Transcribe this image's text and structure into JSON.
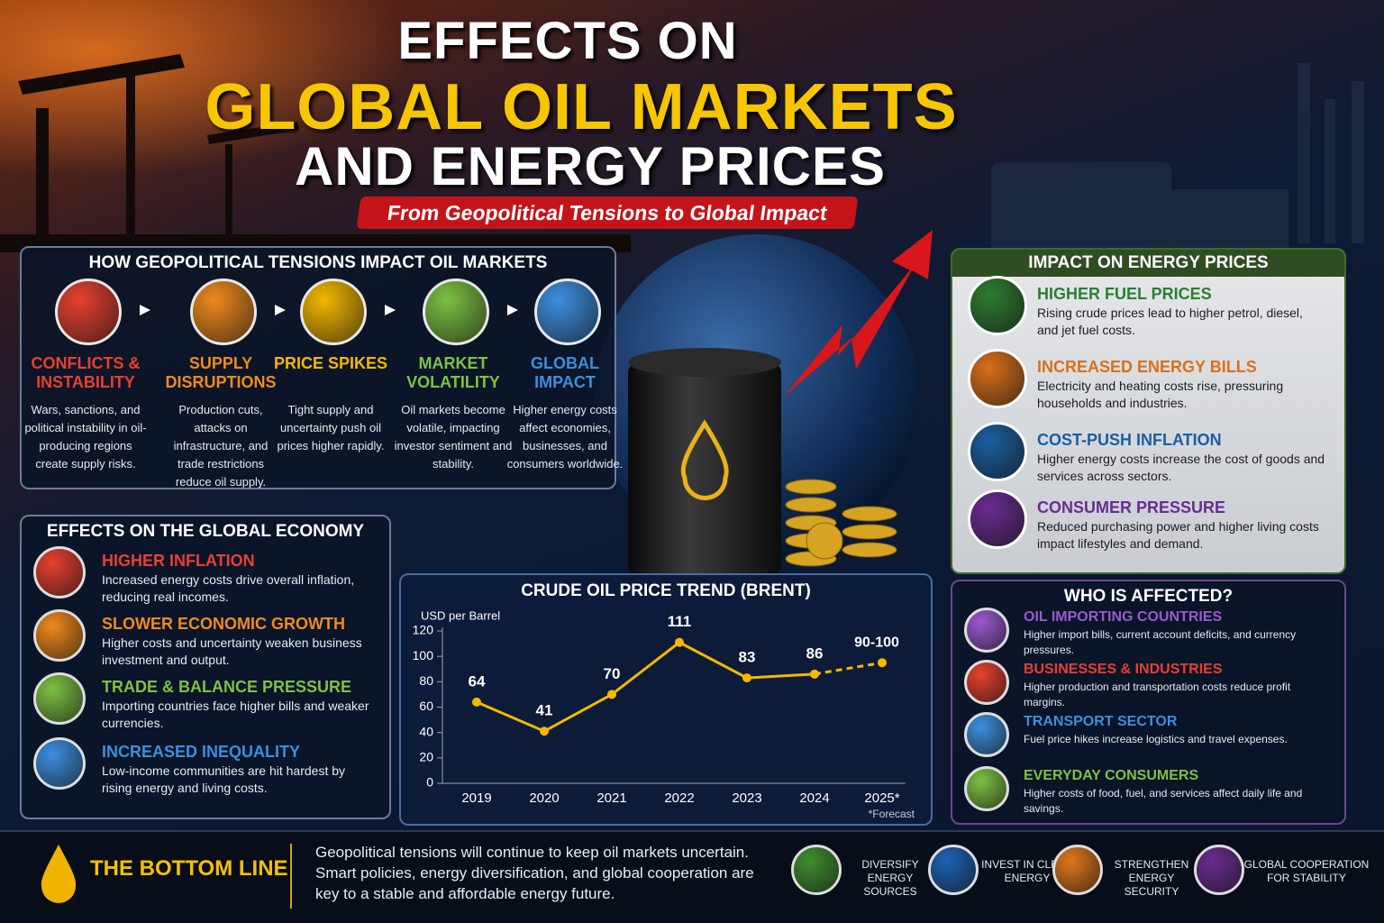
{
  "header": {
    "title_line1": "EFFECTS ON",
    "title_line2": "GLOBAL OIL MARKETS",
    "title_line3": "AND ENERGY PRICES",
    "subtitle": "From Geopolitical Tensions to Global Impact"
  },
  "tensions": {
    "title": "HOW GEOPOLITICAL TENSIONS IMPACT OIL MARKETS",
    "steps": [
      {
        "title": "CONFLICTS & INSTABILITY",
        "text": "Wars, sanctions, and political instability in oil-producing regions create supply risks.",
        "color": "#e8402f"
      },
      {
        "title": "SUPPLY DISRUPTIONS",
        "text": "Production cuts, attacks on infrastructure, and trade restrictions reduce oil supply.",
        "color": "#f08a1c"
      },
      {
        "title": "PRICE SPIKES",
        "text": "Tight supply and uncertainty push oil prices higher rapidly.",
        "color": "#f5b800"
      },
      {
        "title": "MARKET VOLATILITY",
        "text": "Oil markets become volatile, impacting investor sentiment and stability.",
        "color": "#7cc242"
      },
      {
        "title": "GLOBAL IMPACT",
        "text": "Higher energy costs affect economies, businesses, and consumers worldwide.",
        "color": "#3c8fe0"
      }
    ]
  },
  "economy": {
    "title": "EFFECTS ON THE GLOBAL ECONOMY",
    "items": [
      {
        "title": "HIGHER INFLATION",
        "text": "Increased energy costs drive overall inflation, reducing real incomes.",
        "color": "#e8402f"
      },
      {
        "title": "SLOWER ECONOMIC GROWTH",
        "text": "Higher costs and uncertainty weaken business investment and output.",
        "color": "#f08a1c"
      },
      {
        "title": "TRADE & BALANCE PRESSURE",
        "text": "Importing countries face higher bills and weaker currencies.",
        "color": "#7cc242"
      },
      {
        "title": "INCREASED INEQUALITY",
        "text": "Low-income communities are hit hardest by rising energy and living costs.",
        "color": "#3c8fe0"
      }
    ]
  },
  "energy_prices": {
    "title": "IMPACT ON ENERGY PRICES",
    "items": [
      {
        "title": "HIGHER FUEL PRICES",
        "text": "Rising crude prices lead to higher petrol, diesel, and jet fuel costs.",
        "color": "#2e7d32"
      },
      {
        "title": "INCREASED ENERGY BILLS",
        "text": "Electricity and heating costs rise, pressuring households and industries.",
        "color": "#d9701a"
      },
      {
        "title": "COST-PUSH INFLATION",
        "text": "Higher energy costs increase the cost of goods and services across sectors.",
        "color": "#1b5fa0"
      },
      {
        "title": "CONSUMER PRESSURE",
        "text": "Reduced purchasing power and higher living costs impact lifestyles and demand.",
        "color": "#6a2c91"
      }
    ]
  },
  "affected": {
    "title": "WHO IS AFFECTED?",
    "items": [
      {
        "title": "OIL IMPORTING COUNTRIES",
        "text": "Higher import bills, current account deficits, and currency pressures.",
        "color": "#9b59d0"
      },
      {
        "title": "BUSINESSES & INDUSTRIES",
        "text": "Higher production and transportation costs reduce profit margins.",
        "color": "#e8402f"
      },
      {
        "title": "TRANSPORT SECTOR",
        "text": "Fuel price hikes increase logistics and travel expenses.",
        "color": "#3c8fe0"
      },
      {
        "title": "EVERYDAY CONSUMERS",
        "text": "Higher costs of food, fuel, and services affect daily life and savings.",
        "color": "#7cc242"
      }
    ]
  },
  "bottom_line": {
    "title": "THE BOTTOM LINE",
    "text": "Geopolitical tensions will continue to keep oil markets uncertain. Smart policies, energy diversification, and global cooperation are key to a stable and affordable energy future.",
    "actions": [
      {
        "label": "DIVERSIFY ENERGY SOURCES",
        "color": "#3f8f2f"
      },
      {
        "label": "INVEST IN CLEAN ENERGY",
        "color": "#1b63b5"
      },
      {
        "label": "STRENGTHEN ENERGY SECURITY",
        "color": "#e0761c"
      },
      {
        "label": "GLOBAL COOPERATION FOR STABILITY",
        "color": "#6a2c91"
      }
    ]
  },
  "chart_data": {
    "type": "line",
    "title": "CRUDE OIL PRICE TREND (BRENT)",
    "y_label": "USD per Barrel",
    "note": "*Forecast",
    "categories": [
      "2019",
      "2020",
      "2021",
      "2022",
      "2023",
      "2024",
      "2025*"
    ],
    "series": [
      {
        "values": [
          64,
          41,
          70,
          111,
          83,
          86,
          null
        ],
        "color": "#f5b800"
      },
      {
        "values": [
          null,
          null,
          null,
          null,
          null,
          86,
          95
        ],
        "color": "#f5b800",
        "dashed": true,
        "label": "90-100"
      }
    ],
    "ylim": [
      0,
      120
    ],
    "yticks": [
      0,
      20,
      40,
      60,
      80,
      100,
      120
    ],
    "grid": false
  }
}
